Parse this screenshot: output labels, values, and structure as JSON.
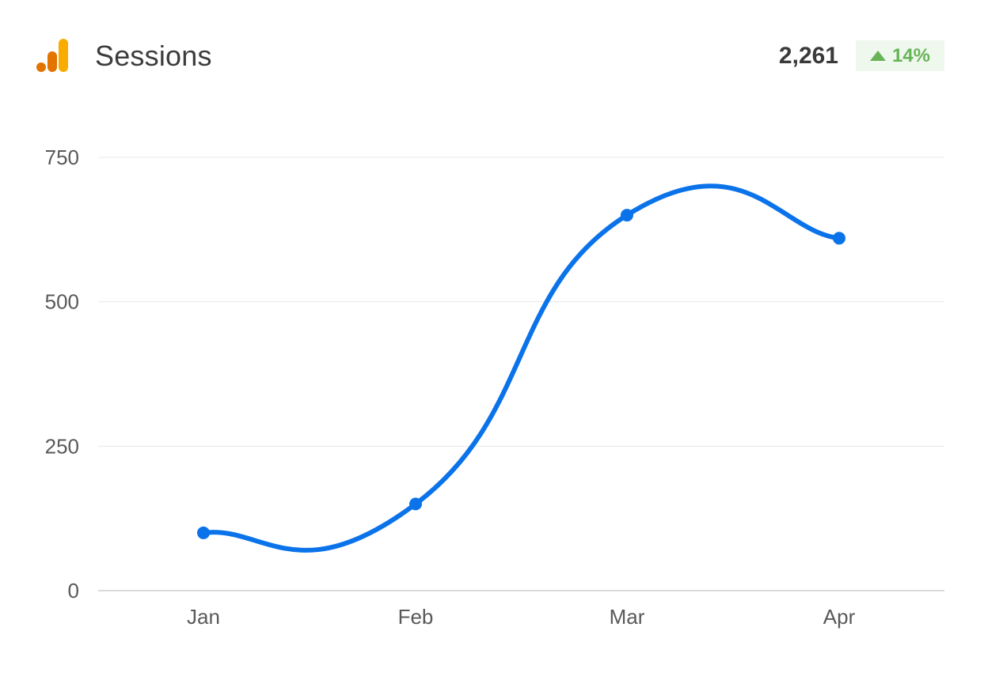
{
  "header": {
    "title": "Sessions",
    "total": "2,261",
    "delta": "14%",
    "logo_icon": "analytics-bars-icon"
  },
  "colors": {
    "line": "#0b73ea",
    "delta_text": "#67b457",
    "delta_bg": "#eef8ec",
    "logo_primary": "#f9ab00",
    "logo_secondary": "#e37400"
  },
  "chart_data": {
    "type": "line",
    "categories": [
      "Jan",
      "Feb",
      "Mar",
      "Apr"
    ],
    "series": [
      {
        "values": [
          100,
          150,
          650,
          610
        ]
      }
    ],
    "yticks": [
      0,
      250,
      500,
      750
    ],
    "ylim": [
      0,
      750
    ],
    "grid": true,
    "smooth": true
  }
}
